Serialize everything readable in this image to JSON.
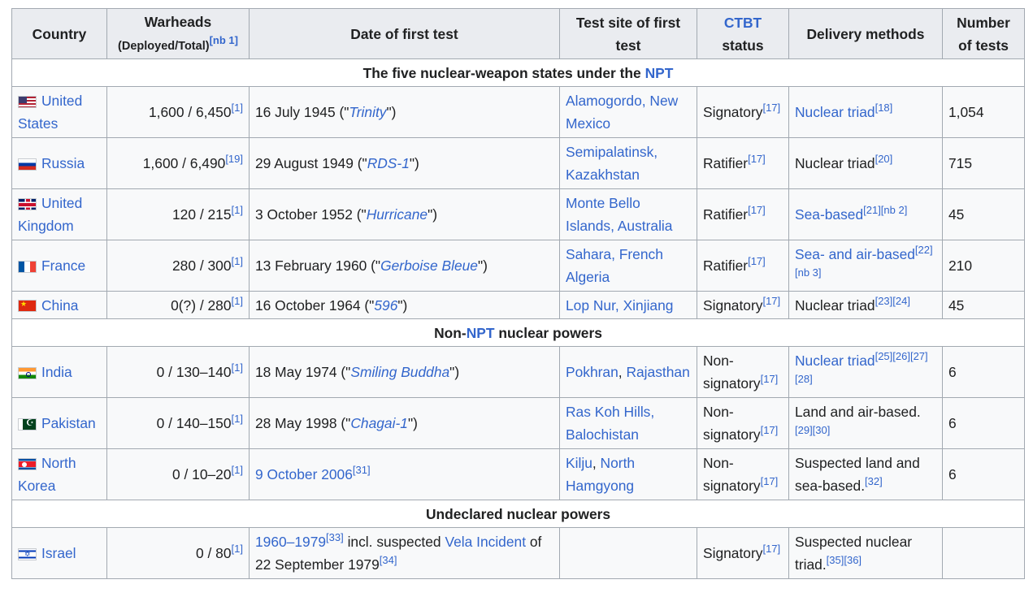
{
  "headers": {
    "country": "Country",
    "warheads": "Warheads",
    "warheads_sub": "(Deployed/Total)",
    "warheads_note": "[nb 1]",
    "date": "Date of first test",
    "site": "Test site of first test",
    "ctbt_link": "CTBT",
    "ctbt_rest": "status",
    "delivery": "Delivery methods",
    "tests": "Number of tests"
  },
  "sections": {
    "npt_before": "The five nuclear-weapon states under the ",
    "npt_link": "NPT",
    "non_before": "Non-",
    "non_link": "NPT",
    "non_after": " nuclear powers",
    "undeclared": "Undeclared nuclear powers"
  },
  "rows": [
    {
      "flag": "us-flag-icon",
      "country": "United States",
      "warheads": "1,600 / 6,450",
      "w_ref": "[1]",
      "date_pre": "16 July 1945 (\"",
      "date_link": "Trinity",
      "date_post": "\")",
      "site": "Alamogordo, New Mexico",
      "ctbt": "Signatory",
      "ctbt_ref": "[17]",
      "delivery": "Nuclear triad",
      "delivery_ref": "[18]",
      "tests": "1,054"
    },
    {
      "flag": "russia-flag-icon",
      "country": "Russia",
      "warheads": "1,600 / 6,490",
      "w_ref": "[19]",
      "date_pre": "29 August 1949 (\"",
      "date_link": "RDS-1",
      "date_post": "\")",
      "site": "Semipalatinsk, Kazakhstan",
      "ctbt": "Ratifier",
      "ctbt_ref": "[17]",
      "delivery": "Nuclear triad",
      "delivery_ref": "[20]",
      "tests": "715"
    },
    {
      "flag": "uk-flag-icon",
      "country": "United Kingdom",
      "warheads": "120 / 215",
      "w_ref": "[1]",
      "date_pre": "3 October 1952 (\"",
      "date_link": "Hurricane",
      "date_post": "\")",
      "site": "Monte Bello Islands, Australia",
      "ctbt": "Ratifier",
      "ctbt_ref": "[17]",
      "delivery": "Sea-based",
      "delivery_ref": "[21][nb 2]",
      "tests": "45"
    },
    {
      "flag": "france-flag-icon",
      "country": "France",
      "warheads": "280 / 300",
      "w_ref": "[1]",
      "date_pre": "13 February 1960 (\"",
      "date_link": "Gerboise Bleue",
      "date_post": "\")",
      "site": "Sahara, French Algeria",
      "ctbt": "Ratifier",
      "ctbt_ref": "[17]",
      "delivery": "Sea- and air-based",
      "delivery_ref": "[22][nb 3]",
      "tests": "210"
    },
    {
      "flag": "china-flag-icon",
      "country": "China",
      "warheads": "0(?) / 280",
      "w_ref": "[1]",
      "date_pre": "16 October 1964 (\"",
      "date_link": "596",
      "date_post": "\")",
      "site": "Lop Nur, Xinjiang",
      "ctbt": "Signatory",
      "ctbt_ref": "[17]",
      "delivery": "Nuclear triad",
      "delivery_ref": "[23][24]",
      "tests": "45"
    },
    {
      "flag": "india-flag-icon",
      "country": "India",
      "warheads": "0 / 130–140",
      "w_ref": "[1]",
      "date_pre": "18 May 1974 (\"",
      "date_link": "Smiling Buddha",
      "date_post": "\")",
      "site_a": "Pokhran",
      "site_sep": ", ",
      "site_b": "Rajasthan",
      "ctbt": "Non-signatory",
      "ctbt_ref": "[17]",
      "delivery": "Nuclear triad",
      "delivery_ref": "[25][26][27][28]",
      "tests": "6"
    },
    {
      "flag": "pakistan-flag-icon",
      "country": "Pakistan",
      "warheads": "0 / 140–150",
      "w_ref": "[1]",
      "date_pre": "28 May 1998 (\"",
      "date_link": "Chagai-1",
      "date_post": "\")",
      "site": "Ras Koh Hills, Balochistan",
      "ctbt": "Non-signatory",
      "ctbt_ref": "[17]",
      "delivery": "Land and air-based.",
      "delivery_ref": "[29][30]",
      "tests": "6"
    },
    {
      "flag": "north-korea-flag-icon",
      "country": "North Korea",
      "warheads": "0 / 10–20",
      "w_ref": "[1]",
      "date": "9 October 2006",
      "date_ref": "[31]",
      "site_a": "Kilju",
      "site_sep": ", ",
      "site_b": "North Hamgyong",
      "ctbt": "Non-signatory",
      "ctbt_ref": "[17]",
      "delivery": "Suspected land and sea-based.",
      "delivery_ref": "[32]",
      "tests": "6"
    },
    {
      "flag": "israel-flag-icon",
      "country": "Israel",
      "warheads": "0 / 80",
      "w_ref": "[1]",
      "date_link": "1960–1979",
      "date_ref1": "[33]",
      "date_mid": " incl. suspected ",
      "date_link2": "Vela Incident",
      "date_end": " of 22 September 1979",
      "date_ref2": "[34]",
      "site": "",
      "ctbt": "Signatory",
      "ctbt_ref": "[17]",
      "delivery": "Suspected nuclear triad.",
      "delivery_ref": "[35][36]",
      "tests": ""
    }
  ]
}
